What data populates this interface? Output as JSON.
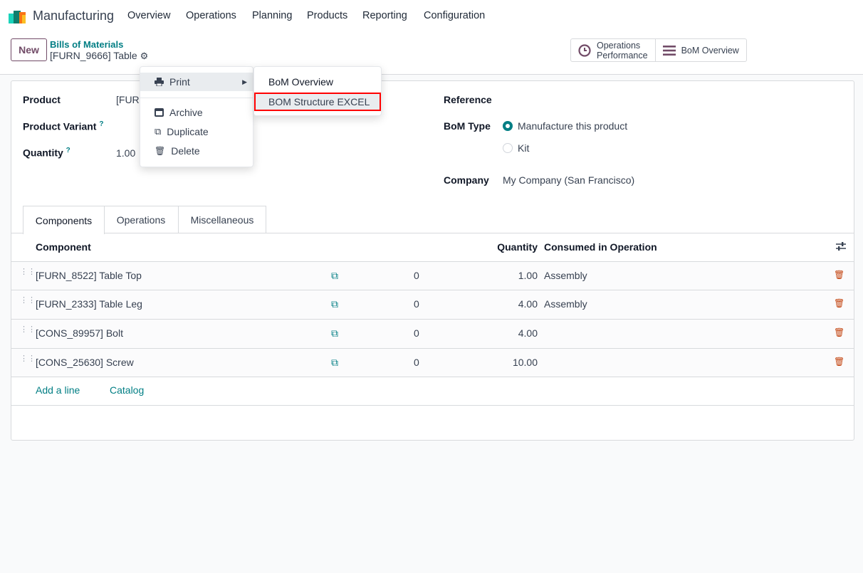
{
  "app": {
    "title": "Manufacturing"
  },
  "nav": {
    "items": [
      "Overview",
      "Operations",
      "Planning",
      "Products",
      "Reporting",
      "Configuration"
    ]
  },
  "control": {
    "new_label": "New",
    "breadcrumb": "Bills of Materials",
    "record": "[FURN_9666] Table",
    "buttons": [
      {
        "label1": "Operations",
        "label2": "Performance",
        "icon": "clock-icon"
      },
      {
        "label": "BoM Overview",
        "icon": "bars-icon"
      }
    ]
  },
  "form": {
    "product_label": "Product",
    "product_value": "[FURN_9666] Table",
    "variant_label": "Product Variant",
    "help": "?",
    "quantity_label": "Quantity",
    "quantity_value": "1.00",
    "reference_label": "Reference",
    "bom_type_label": "BoM Type",
    "bom_type_options": [
      "Manufacture this product",
      "Kit"
    ],
    "bom_type_selected": "Manufacture this product",
    "company_label": "Company",
    "company_value": "My Company (San Francisco)"
  },
  "tabs": [
    "Components",
    "Operations",
    "Miscellaneous"
  ],
  "table": {
    "headers": {
      "component": "Component",
      "quantity": "Quantity",
      "operation": "Consumed in Operation"
    },
    "rows": [
      {
        "component": "[FURN_8522] Table Top",
        "avail": "0",
        "quantity": "1.00",
        "operation": "Assembly"
      },
      {
        "component": "[FURN_2333] Table Leg",
        "avail": "0",
        "quantity": "4.00",
        "operation": "Assembly"
      },
      {
        "component": "[CONS_89957] Bolt",
        "avail": "0",
        "quantity": "4.00",
        "operation": ""
      },
      {
        "component": "[CONS_25630] Screw",
        "avail": "0",
        "quantity": "10.00",
        "operation": ""
      }
    ],
    "add_line": "Add a line",
    "catalog": "Catalog"
  },
  "dropdown": {
    "print": "Print",
    "archive": "Archive",
    "duplicate": "Duplicate",
    "delete": "Delete",
    "submenu": [
      "BoM Overview",
      "BOM Structure EXCEL"
    ]
  },
  "colors": {
    "brand": "#714b67",
    "link": "#017e84",
    "highlight": "#ff0000",
    "trash": "#c2410c"
  }
}
